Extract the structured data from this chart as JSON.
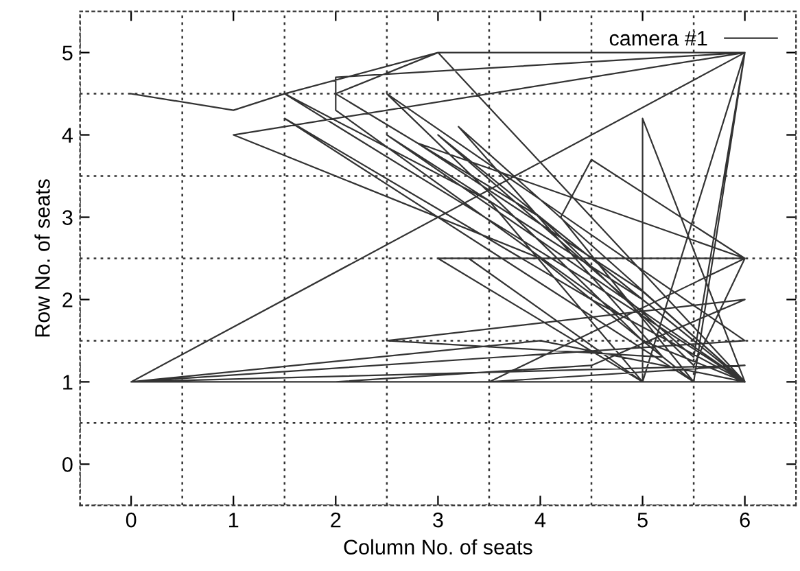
{
  "chart_data": {
    "type": "line",
    "xlabel": "Column No. of seats",
    "ylabel": "Row No. of seats",
    "xlim": [
      -0.5,
      6.5
    ],
    "ylim": [
      -0.5,
      5.5
    ],
    "xticks": [
      {
        "value": -0.5,
        "label": null
      },
      0,
      {
        "value": 0.5,
        "label": null
      },
      1,
      {
        "value": 1.5,
        "label": null
      },
      2,
      {
        "value": 2.5,
        "label": null
      },
      3,
      {
        "value": 3.5,
        "label": null
      },
      4,
      {
        "value": 4.5,
        "label": null
      },
      5,
      {
        "value": 5.5,
        "label": null
      },
      6
    ],
    "yticks": [
      {
        "value": -0.5,
        "label": null
      },
      0,
      {
        "value": 0.5,
        "label": null
      },
      1,
      {
        "value": 1.5,
        "label": null
      },
      2,
      {
        "value": 2.5,
        "label": null
      },
      3,
      {
        "value": 3.5,
        "label": null
      },
      4,
      {
        "value": 4.5,
        "label": null
      },
      5
    ],
    "grid": true,
    "legend": "top right",
    "marker": "none",
    "line_style": "solid",
    "series": [
      {
        "name": "camera #1",
        "color": "#333333",
        "x": [
          0,
          1,
          1.5,
          3.5,
          5,
          6,
          0,
          5.5,
          1.5,
          4.5,
          6,
          3,
          2,
          4,
          5.5,
          6,
          3.3,
          5,
          6,
          1,
          4,
          5.5,
          0,
          6,
          2.5,
          5,
          6,
          0,
          6,
          2,
          2,
          4.8,
          6,
          3.2,
          5.2,
          2.5,
          6,
          4.5,
          2,
          6,
          0,
          6,
          3.5,
          6,
          4.5,
          4.2,
          5.5,
          6,
          0,
          4,
          6,
          2.5,
          5,
          6,
          5,
          5,
          3,
          6,
          2.8,
          5,
          6,
          3,
          5.5,
          6,
          3,
          1.5,
          4.5,
          6
        ],
        "values": [
          4.5,
          4.3,
          4.5,
          3.2,
          1,
          5,
          1,
          1,
          4.2,
          2,
          1,
          5,
          4.5,
          3,
          1.2,
          2.5,
          2.5,
          1,
          5,
          4,
          2.5,
          1,
          1,
          1.5,
          4.5,
          1.5,
          1,
          1,
          5,
          4.7,
          4.3,
          1.8,
          1,
          4.1,
          1.3,
          1.5,
          2,
          1.2,
          1,
          1,
          1,
          1.2,
          1,
          2.5,
          3.7,
          3,
          1,
          5,
          1,
          1.5,
          1,
          4,
          2,
          1,
          4.2,
          1,
          2.5,
          2.5,
          3.9,
          2.1,
          1,
          4,
          1.3,
          5,
          5,
          4.5,
          2.2,
          1
        ]
      }
    ]
  }
}
